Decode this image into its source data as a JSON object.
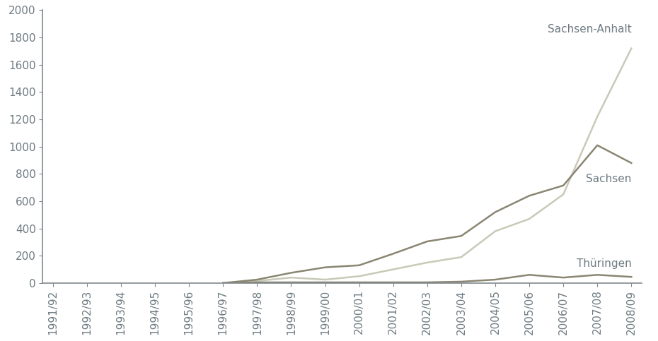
{
  "chart_data": {
    "type": "line",
    "categories": [
      "1991/92",
      "1992/93",
      "1993/94",
      "1994/95",
      "1995/96",
      "1996/97",
      "1997/98",
      "1998/99",
      "1999/00",
      "2000/01",
      "2001/02",
      "2002/03",
      "2003/04",
      "2004/05",
      "2005/06",
      "2006/07",
      "2007/08",
      "2008/09"
    ],
    "series": [
      {
        "name": "Sachsen-Anhalt",
        "color": "#c9c9b8",
        "values": [
          null,
          null,
          null,
          null,
          null,
          0,
          15,
          40,
          25,
          50,
          100,
          150,
          190,
          380,
          470,
          650,
          1220,
          1720
        ]
      },
      {
        "name": "Sachsen",
        "color": "#8a8672",
        "values": [
          null,
          null,
          null,
          null,
          null,
          0,
          25,
          75,
          115,
          130,
          215,
          305,
          345,
          520,
          640,
          715,
          1010,
          880
        ]
      },
      {
        "name": "Thüringen",
        "color": "#8a8672",
        "values": [
          null,
          null,
          null,
          null,
          null,
          0,
          5,
          5,
          5,
          5,
          5,
          5,
          10,
          25,
          60,
          40,
          60,
          45
        ]
      }
    ],
    "ylim": [
      0,
      2000
    ],
    "yticks": [
      0,
      200,
      400,
      600,
      800,
      1000,
      1200,
      1400,
      1600,
      1800,
      2000
    ],
    "grid": false
  }
}
